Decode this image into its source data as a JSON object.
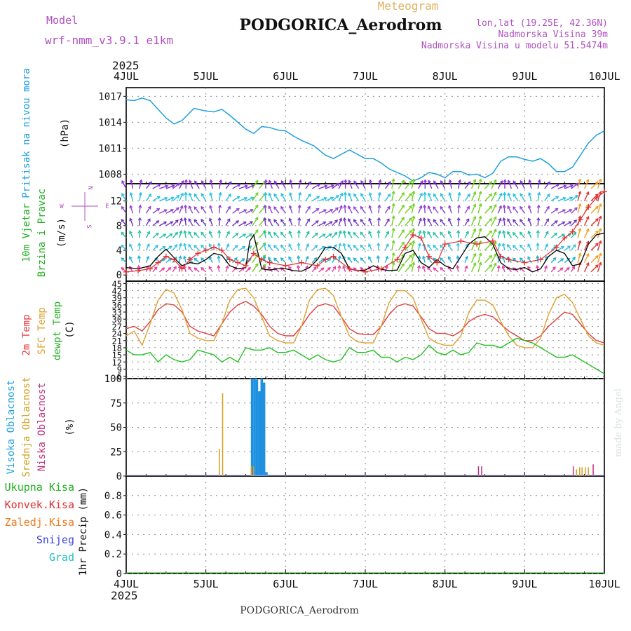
{
  "header": {
    "model_label": "Model",
    "model_name": "wrf-nmm_v3.9.1 e1km",
    "product": "Meteogram",
    "station": "PODGORICA_Aerodrom",
    "lonlat": "lon,lat (19.25E, 42.36N)",
    "elevation": "Nadmorska Visina 39m",
    "model_elevation": "Nadmorska Visina u modelu 51.5474m",
    "footer_station": "PODGORICA_Aerodrom",
    "watermark": "made by Angel"
  },
  "time_axis": {
    "year": "2025",
    "labels": [
      "4JUL",
      "5JUL",
      "6JUL",
      "7JUL",
      "8JUL",
      "9JUL",
      "10JUL"
    ],
    "days": 6,
    "steps_per_day": 24
  },
  "colors": {
    "pressure": "#1ea0e0",
    "wind_speed": "#000000",
    "gust": "#e03030",
    "temp_2m": "#e04040",
    "temp_sfc": "#e0a030",
    "dewpoint": "#20c020",
    "cloud_high": "#1e90e0",
    "cloud_mid": "#d4a020",
    "cloud_low": "#c03080",
    "precip_total": "#20b020",
    "precip_conv": "#e03030",
    "precip_frozen": "#f07820",
    "snow": "#4040e0",
    "hail": "#20c0c0",
    "model_text": "#b050c0",
    "product_text": "#e0b060",
    "wind_compass": "#b050c0"
  },
  "panels": {
    "pressure": {
      "label_name": "Pritisak na nivou mora",
      "unit": "(hPa)"
    },
    "wind": {
      "label_name_1": "10m Vjetar",
      "label_name_2": "Brzina i Pravac",
      "unit": "(m/s)",
      "compass": {
        "n": "N",
        "s": "S",
        "e": "E",
        "w": "W"
      }
    },
    "temperature": {
      "label_2m": "2m Temp",
      "label_sfc": "SFC Temp",
      "label_dew": "dewpt Temp",
      "unit": "(C)"
    },
    "cloud": {
      "label_high": "Visoka Oblacnost",
      "label_mid": "Srednja Oblacnost",
      "label_low": "Niska Oblacnost",
      "unit": "(%)"
    },
    "precip": {
      "label_total": "Ukupna Kisa",
      "label_conv": "Konvek.Kisa",
      "label_frozen": "Zaledj.Kisa",
      "label_snow": "Snijeg",
      "label_hail": "Grad",
      "unit": "1hr Precip (mm)"
    }
  },
  "chart_data": [
    {
      "type": "line",
      "title": "",
      "ylabel": "Pritisak na nivou mora (hPa)",
      "ylim": [
        1006.9,
        1018
      ],
      "yticks": [
        1008,
        1011,
        1014,
        1017
      ],
      "x_unit": "days from 4JUL 00",
      "series": [
        {
          "name": "Pritisak na nivou mora",
          "x": [
            0,
            0.1,
            0.2,
            0.3,
            0.5,
            0.6,
            0.7,
            0.85,
            1.0,
            1.1,
            1.2,
            1.3,
            1.5,
            1.6,
            1.7,
            1.8,
            1.9,
            2.0,
            2.1,
            2.2,
            2.35,
            2.5,
            2.6,
            2.8,
            2.9,
            3.0,
            3.1,
            3.2,
            3.3,
            3.5,
            3.6,
            3.7,
            3.8,
            3.9,
            4.0,
            4.1,
            4.2,
            4.3,
            4.4,
            4.5,
            4.6,
            4.7,
            4.8,
            4.9,
            5.0,
            5.1,
            5.2,
            5.3,
            5.4,
            5.5,
            5.6,
            5.7,
            5.8,
            5.9,
            6.0
          ],
          "values": [
            1016.6,
            1016.5,
            1016.8,
            1016.5,
            1014.5,
            1013.8,
            1014.2,
            1015.6,
            1015.3,
            1015.2,
            1015.5,
            1014.8,
            1013.2,
            1012.7,
            1013.5,
            1013.4,
            1013.1,
            1013.0,
            1012.4,
            1011.9,
            1011.3,
            1010.2,
            1009.8,
            1010.8,
            1010.3,
            1009.8,
            1009.8,
            1009.3,
            1008.6,
            1007.8,
            1007.2,
            1007.6,
            1008.2,
            1008.0,
            1007.6,
            1008.3,
            1008.3,
            1007.9,
            1008.0,
            1007.6,
            1008.1,
            1009.5,
            1010.0,
            1010.0,
            1009.7,
            1009.5,
            1009.8,
            1009.2,
            1008.3,
            1008.3,
            1008.8,
            1010.2,
            1011.6,
            1012.5,
            1013.0
          ]
        }
      ]
    },
    {
      "type": "line",
      "title": "",
      "ylabel": "10m Vjetar Brzina i Pravac (m/s)",
      "ylim": [
        -1,
        14.8
      ],
      "yticks": [
        0,
        4,
        8,
        12
      ],
      "x_unit": "days from 4JUL 00",
      "wind_barb_rows_ms": [
        0.5,
        2,
        4,
        6,
        8,
        10,
        12,
        14
      ],
      "series": [
        {
          "name": "10m wind speed",
          "x": [
            0,
            0.15,
            0.3,
            0.4,
            0.5,
            0.6,
            0.7,
            0.8,
            0.9,
            1.0,
            1.1,
            1.2,
            1.3,
            1.4,
            1.5,
            1.55,
            1.6,
            1.7,
            1.8,
            1.9,
            2.0,
            2.1,
            2.2,
            2.3,
            2.4,
            2.5,
            2.6,
            2.7,
            2.8,
            2.9,
            3.0,
            3.1,
            3.2,
            3.3,
            3.4,
            3.5,
            3.6,
            3.7,
            3.8,
            3.9,
            4.0,
            4.1,
            4.2,
            4.3,
            4.4,
            4.5,
            4.6,
            4.7,
            4.8,
            4.9,
            5.0,
            5.1,
            5.2,
            5.3,
            5.4,
            5.5,
            5.6,
            5.7,
            5.8,
            5.9,
            6.0
          ],
          "values": [
            1.2,
            1.0,
            1.5,
            3.0,
            4.2,
            2.8,
            1.5,
            2.0,
            1.8,
            2.5,
            3.5,
            3.2,
            1.5,
            1.0,
            1.2,
            5.5,
            6.5,
            1.0,
            0.8,
            1.0,
            1.0,
            0.7,
            0.6,
            1.2,
            2.5,
            4.5,
            4.5,
            3.5,
            1.0,
            0.7,
            0.8,
            1.5,
            0.9,
            0.7,
            0.8,
            3.5,
            4.0,
            2.0,
            1.2,
            2.5,
            1.5,
            1.0,
            3.0,
            5.0,
            6.0,
            6.2,
            5.0,
            2.0,
            1.0,
            0.9,
            1.2,
            0.5,
            1.0,
            3.0,
            4.0,
            3.5,
            1.5,
            1.8,
            5.0,
            6.5,
            6.8
          ]
        },
        {
          "name": "10m wind gust",
          "x": [
            0,
            0.15,
            0.3,
            0.4,
            0.5,
            0.6,
            0.7,
            0.8,
            0.9,
            1.0,
            1.1,
            1.2,
            1.3,
            1.4,
            1.5,
            1.6,
            1.7,
            1.8,
            2.0,
            2.2,
            2.4,
            2.5,
            2.6,
            2.8,
            3.0,
            3.2,
            3.4,
            3.5,
            3.6,
            3.7,
            3.8,
            3.9,
            4.0,
            4.2,
            4.4,
            4.6,
            4.7,
            4.8,
            5.0,
            5.2,
            5.4,
            5.5,
            5.6,
            5.7,
            5.8,
            5.9,
            6.0
          ],
          "values": [
            0.5,
            0.7,
            1.0,
            2.0,
            3.0,
            2.5,
            1.0,
            2.5,
            3.5,
            4.0,
            4.5,
            4.0,
            2.5,
            2.0,
            1.5,
            3.5,
            2.5,
            2.0,
            1.5,
            2.0,
            1.5,
            2.5,
            3.0,
            1.0,
            0.5,
            1.0,
            2.5,
            4.5,
            6.5,
            6.0,
            3.0,
            2.0,
            5.0,
            5.5,
            5.0,
            5.5,
            3.0,
            2.5,
            2.0,
            2.5,
            4.5,
            6.0,
            7.0,
            9.0,
            11.0,
            12.5,
            13.5
          ]
        }
      ]
    },
    {
      "type": "line",
      "title": "",
      "ylabel": "Temperature (C)",
      "ylim": [
        5,
        46
      ],
      "yticks": [
        6,
        9,
        12,
        15,
        18,
        21,
        24,
        27,
        30,
        33,
        36,
        39,
        42,
        45
      ],
      "x_unit": "days from 4JUL 00",
      "series": [
        {
          "name": "2m Temp",
          "x": [
            0,
            0.1,
            0.2,
            0.3,
            0.4,
            0.5,
            0.6,
            0.7,
            0.8,
            0.9,
            1.0,
            1.1,
            1.2,
            1.3,
            1.4,
            1.5,
            1.6,
            1.7,
            1.8,
            1.9,
            2.0,
            2.1,
            2.2,
            2.3,
            2.4,
            2.5,
            2.6,
            2.7,
            2.8,
            2.9,
            3.0,
            3.1,
            3.2,
            3.3,
            3.4,
            3.5,
            3.6,
            3.7,
            3.8,
            3.9,
            4.0,
            4.1,
            4.2,
            4.3,
            4.4,
            4.5,
            4.6,
            4.7,
            4.8,
            4.9,
            5.0,
            5.1,
            5.2,
            5.3,
            5.4,
            5.5,
            5.6,
            5.7,
            5.8,
            5.9,
            6.0
          ],
          "values": [
            26,
            27,
            25,
            29,
            34,
            36.5,
            36,
            33,
            27,
            25,
            24,
            23,
            28,
            33,
            36,
            37.5,
            35.5,
            32,
            27,
            24,
            23,
            23,
            27,
            32,
            35.5,
            36.5,
            35.5,
            31,
            26,
            24,
            23.5,
            23.5,
            27,
            32,
            35.5,
            36.5,
            35.5,
            31,
            26,
            24,
            24,
            23,
            25,
            29,
            31,
            32,
            31,
            28,
            25,
            23,
            21,
            21,
            23,
            27,
            30,
            33,
            32,
            28,
            24,
            21,
            20
          ]
        },
        {
          "name": "SFC Temp",
          "x": [
            0,
            0.1,
            0.2,
            0.3,
            0.4,
            0.5,
            0.6,
            0.7,
            0.8,
            0.9,
            1.0,
            1.1,
            1.2,
            1.3,
            1.4,
            1.5,
            1.6,
            1.7,
            1.8,
            1.9,
            2.0,
            2.1,
            2.2,
            2.3,
            2.4,
            2.5,
            2.6,
            2.7,
            2.8,
            2.9,
            3.0,
            3.1,
            3.2,
            3.3,
            3.4,
            3.5,
            3.6,
            3.7,
            3.8,
            3.9,
            4.0,
            4.1,
            4.2,
            4.3,
            4.4,
            4.5,
            4.6,
            4.7,
            4.8,
            4.9,
            5.0,
            5.1,
            5.2,
            5.3,
            5.4,
            5.5,
            5.6,
            5.7,
            5.8,
            5.9,
            6.0
          ],
          "values": [
            23,
            25,
            19,
            28,
            38,
            42.5,
            41,
            34,
            24,
            22,
            21,
            21,
            28,
            38,
            42.5,
            43,
            39,
            31,
            23,
            21,
            20,
            20,
            27,
            38,
            42.5,
            43,
            40,
            31,
            23,
            20.5,
            20,
            20,
            27,
            37,
            42,
            42,
            39,
            30,
            22,
            20,
            19,
            19,
            23,
            33,
            38,
            38,
            36,
            29,
            23,
            19,
            18,
            18,
            22,
            32,
            39,
            40.5,
            37,
            30,
            23,
            20,
            19
          ]
        },
        {
          "name": "dewpt Temp",
          "x": [
            0,
            0.1,
            0.2,
            0.3,
            0.4,
            0.5,
            0.6,
            0.7,
            0.8,
            0.9,
            1.0,
            1.1,
            1.2,
            1.3,
            1.4,
            1.5,
            1.6,
            1.7,
            1.8,
            1.9,
            2.0,
            2.1,
            2.2,
            2.3,
            2.4,
            2.5,
            2.6,
            2.7,
            2.8,
            2.9,
            3.0,
            3.1,
            3.2,
            3.3,
            3.4,
            3.5,
            3.6,
            3.7,
            3.8,
            3.9,
            4.0,
            4.1,
            4.2,
            4.3,
            4.4,
            4.5,
            4.6,
            4.7,
            4.8,
            4.9,
            5.0,
            5.1,
            5.2,
            5.3,
            5.4,
            5.5,
            5.6,
            5.7,
            5.8,
            5.9,
            6.0
          ],
          "values": [
            17,
            15,
            15,
            16,
            12,
            15,
            13,
            12,
            13,
            17,
            16,
            15,
            12,
            14,
            12,
            18,
            17,
            17,
            18,
            16,
            16,
            17,
            15,
            13,
            15,
            13,
            12,
            13,
            18,
            16,
            16,
            17,
            14,
            14,
            12,
            14,
            13,
            15,
            19,
            16,
            15,
            17,
            15,
            16,
            20,
            19,
            19,
            18,
            20,
            22,
            21,
            20,
            18,
            16,
            14,
            14,
            15,
            13,
            11,
            9,
            7
          ]
        }
      ]
    },
    {
      "type": "bar",
      "title": "",
      "ylabel": "Oblacnost (%)",
      "ylim": [
        0,
        100
      ],
      "yticks": [
        0,
        25,
        50,
        75,
        100
      ],
      "x_unit": "days from 4JUL 00",
      "series": [
        {
          "name": "Visoka Oblacnost",
          "x": [
            1.58,
            1.61,
            1.64,
            1.67,
            1.7,
            1.73,
            1.76
          ],
          "values": [
            100,
            100,
            99,
            87,
            100,
            96,
            4
          ]
        },
        {
          "name": "Srednja Oblacnost",
          "x": [
            1.17,
            1.21,
            1.57,
            1.6,
            5.65,
            5.69,
            5.72,
            5.76,
            5.8
          ],
          "values": [
            28,
            85,
            10,
            10,
            7,
            9,
            9,
            9,
            9
          ]
        },
        {
          "name": "Niska Oblacnost",
          "x": [
            4.42,
            4.46,
            5.61,
            5.86
          ],
          "values": [
            10,
            10,
            10,
            12
          ]
        }
      ]
    },
    {
      "type": "bar",
      "title": "",
      "ylabel": "1hr Precip (mm)",
      "ylim": [
        0,
        1
      ],
      "yticks": [
        0,
        0.2,
        0.4,
        0.6,
        0.8
      ],
      "x_unit": "days from 4JUL 00",
      "series": [
        {
          "name": "Ukupna Kisa",
          "x": [],
          "values": []
        }
      ]
    }
  ]
}
